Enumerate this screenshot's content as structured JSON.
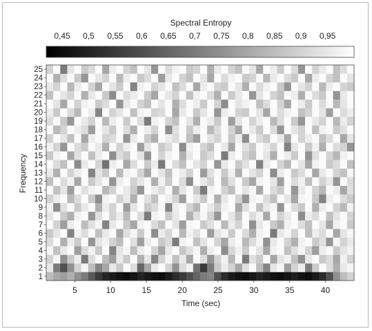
{
  "chart_data": {
    "type": "heatmap",
    "title": "",
    "colorbar": {
      "label": "Spectral Entropy",
      "ticks": [
        0.45,
        0.5,
        0.55,
        0.6,
        0.65,
        0.7,
        0.75,
        0.8,
        0.85,
        0.9,
        0.95
      ],
      "tick_labels": [
        "0,45",
        "0,5",
        "0,55",
        "0,6",
        "0,65",
        "0,7",
        "0,75",
        "0,8",
        "0,85",
        "0,9",
        "0,95"
      ],
      "range": [
        0.42,
        1.0
      ],
      "colormap": "gray (black = low, white = high)",
      "placement": "top"
    },
    "xlabel": "Time (sec)",
    "ylabel": "Frequency",
    "x_ticks": [
      5,
      10,
      15,
      20,
      25,
      30,
      35,
      40
    ],
    "y_ticks": [
      1,
      2,
      3,
      4,
      5,
      6,
      7,
      8,
      9,
      10,
      11,
      12,
      13,
      14,
      15,
      16,
      17,
      18,
      19,
      20,
      21,
      22,
      23,
      24,
      25
    ],
    "x_range": [
      1,
      44
    ],
    "y_range": [
      1,
      25
    ],
    "grid": false,
    "rows": {
      "1": [
        0.85,
        0.8,
        0.78,
        0.82,
        0.75,
        0.7,
        0.62,
        0.55,
        0.5,
        0.48,
        0.46,
        0.45,
        0.47,
        0.5,
        0.48,
        0.46,
        0.45,
        0.48,
        0.52,
        0.55,
        0.6,
        0.65,
        0.7,
        0.72,
        0.6,
        0.52,
        0.48,
        0.46,
        0.45,
        0.47,
        0.5,
        0.48,
        0.46,
        0.45,
        0.47,
        0.49,
        0.46,
        0.45,
        0.48,
        0.52,
        0.6,
        0.75,
        0.85,
        0.9
      ],
      "2": [
        0.95,
        0.7,
        0.6,
        0.75,
        0.9,
        0.98,
        0.85,
        0.72,
        0.8,
        0.95,
        0.88,
        0.99,
        0.92,
        0.65,
        0.8,
        0.95,
        0.99,
        0.9,
        0.75,
        0.92,
        0.97,
        0.68,
        0.55,
        0.7,
        0.88,
        0.96,
        0.9,
        0.8,
        0.93,
        0.99,
        0.85,
        0.72,
        0.94,
        0.98,
        0.78,
        0.9,
        0.96,
        0.7,
        0.88,
        0.99,
        0.92,
        0.82,
        0.95,
        0.98
      ],
      "3": [
        0.9,
        0.98,
        0.75,
        0.88,
        0.96,
        0.7,
        0.92,
        0.99,
        0.85,
        0.78,
        0.95,
        0.88,
        0.99,
        0.82,
        0.94,
        0.72,
        0.9,
        0.98,
        0.86,
        0.95,
        0.8,
        0.99,
        0.92,
        0.76,
        0.9,
        0.97,
        0.84,
        0.99,
        0.7,
        0.93,
        0.88,
        0.99,
        0.8,
        0.94,
        0.97,
        0.86,
        0.75,
        0.95,
        0.99,
        0.88,
        0.92,
        0.8,
        0.97,
        0.9
      ],
      "4": [
        0.98,
        0.86,
        0.95,
        0.99,
        0.78,
        0.92,
        0.97,
        0.88,
        0.99,
        0.72,
        0.94,
        0.98,
        0.85,
        0.96,
        0.99,
        0.9,
        0.8,
        0.95,
        0.99,
        0.87,
        0.93,
        0.98,
        0.82,
        0.96,
        0.99,
        0.74,
        0.91,
        0.97,
        0.88,
        0.99,
        0.94,
        0.8,
        0.97,
        0.99,
        0.86,
        0.93,
        0.98,
        0.9,
        0.78,
        0.96,
        0.99,
        0.88,
        0.94,
        0.97
      ],
      "5": [
        0.92,
        0.99,
        0.82,
        0.96,
        0.88,
        0.99,
        0.76,
        0.94,
        0.97,
        0.9,
        0.85,
        0.99,
        0.93,
        0.78,
        0.96,
        0.99,
        0.88,
        0.92,
        0.7,
        0.97,
        0.99,
        0.86,
        0.94,
        0.99,
        0.9,
        0.8,
        0.96,
        0.99,
        0.84,
        0.92,
        0.98,
        0.75,
        0.95,
        0.99,
        0.9,
        0.82,
        0.97,
        0.99,
        0.88,
        0.93,
        0.76,
        0.98,
        0.9,
        0.95
      ],
      "6": [
        0.88,
        0.94,
        0.99,
        0.72,
        0.97,
        0.92,
        0.99,
        0.86,
        0.95,
        0.99,
        0.8,
        0.93,
        0.98,
        0.88,
        0.99,
        0.74,
        0.96,
        0.91,
        0.99,
        0.84,
        0.97,
        0.93,
        0.99,
        0.78,
        0.94,
        0.98,
        0.88,
        0.99,
        0.92,
        0.82,
        0.97,
        0.99,
        0.7,
        0.95,
        0.98,
        0.9,
        0.99,
        0.85,
        0.96,
        0.92,
        0.99,
        0.8,
        0.94,
        0.98
      ],
      "7": [
        0.99,
        0.9,
        0.78,
        0.96,
        0.99,
        0.85,
        0.93,
        0.98,
        0.72,
        0.95,
        0.99,
        0.88,
        0.8,
        0.97,
        0.99,
        0.92,
        0.86,
        0.99,
        0.94,
        0.78,
        0.98,
        0.99,
        0.88,
        0.93,
        0.99,
        0.84,
        0.96,
        0.9,
        0.99,
        0.75,
        0.95,
        0.99,
        0.88,
        0.82,
        0.97,
        0.99,
        0.92,
        0.86,
        0.99,
        0.94,
        0.8,
        0.97,
        0.99,
        0.88
      ],
      "8": [
        0.94,
        0.99,
        0.88,
        0.82,
        0.97,
        0.99,
        0.76,
        0.93,
        0.99,
        0.9,
        0.96,
        0.84,
        0.99,
        0.92,
        0.7,
        0.97,
        0.99,
        0.88,
        0.95,
        0.99,
        0.82,
        0.93,
        0.98,
        0.9,
        0.76,
        0.99,
        0.94,
        0.86,
        0.99,
        0.92,
        0.97,
        0.8,
        0.99,
        0.9,
        0.95,
        0.99,
        0.74,
        0.96,
        0.92,
        0.99,
        0.86,
        0.94,
        0.99,
        0.9
      ],
      "9": [
        0.97,
        0.74,
        0.93,
        0.99,
        0.88,
        0.95,
        0.99,
        0.82,
        0.96,
        0.9,
        0.99,
        0.78,
        0.94,
        0.99,
        0.88,
        0.92,
        0.98,
        0.72,
        0.96,
        0.99,
        0.9,
        0.84,
        0.99,
        0.95,
        0.88,
        0.97,
        0.99,
        0.8,
        0.93,
        0.99,
        0.86,
        0.95,
        0.98,
        0.76,
        0.99,
        0.92,
        0.88,
        0.99,
        0.82,
        0.96,
        0.99,
        0.9,
        0.84,
        0.97
      ],
      "10": [
        0.9,
        0.96,
        0.99,
        0.84,
        0.92,
        0.99,
        0.88,
        0.74,
        0.97,
        0.99,
        0.9,
        0.95,
        0.82,
        0.99,
        0.93,
        0.86,
        0.99,
        0.96,
        0.9,
        0.78,
        0.99,
        0.94,
        0.88,
        0.99,
        0.82,
        0.95,
        0.99,
        0.9,
        0.76,
        0.97,
        0.99,
        0.92,
        0.86,
        0.99,
        0.94,
        0.8,
        0.98,
        0.99,
        0.88,
        0.72,
        0.96,
        0.99,
        0.92,
        0.88
      ],
      "11": [
        0.99,
        0.86,
        0.94,
        0.78,
        0.99,
        0.93,
        0.97,
        0.99,
        0.84,
        0.9,
        0.99,
        0.95,
        0.88,
        0.76,
        0.99,
        0.96,
        0.92,
        0.99,
        0.82,
        0.94,
        0.99,
        0.88,
        0.7,
        0.97,
        0.99,
        0.9,
        0.85,
        0.99,
        0.94,
        0.98,
        0.8,
        0.99,
        0.92,
        0.88,
        0.99,
        0.76,
        0.95,
        0.99,
        0.9,
        0.84,
        0.99,
        0.96,
        0.8,
        0.93
      ],
      "12": [
        0.86,
        0.99,
        0.92,
        0.97,
        0.8,
        0.99,
        0.88,
        0.94,
        0.99,
        0.76,
        0.96,
        0.99,
        0.9,
        0.94,
        0.99,
        0.82,
        0.97,
        0.88,
        0.99,
        0.92,
        0.74,
        0.99,
        0.95,
        0.9,
        0.99,
        0.84,
        0.93,
        0.99,
        0.88,
        0.8,
        0.97,
        0.99,
        0.94,
        0.78,
        0.99,
        0.92,
        0.97,
        0.86,
        0.99,
        0.9,
        0.95,
        0.76,
        0.99,
        0.92
      ],
      "13": [
        0.95,
        0.82,
        0.99,
        0.9,
        0.96,
        0.99,
        0.72,
        0.94,
        0.88,
        0.99,
        0.84,
        0.97,
        0.99,
        0.9,
        0.8,
        0.99,
        0.94,
        0.86,
        0.99,
        0.96,
        0.9,
        0.99,
        0.78,
        0.93,
        0.99,
        0.88,
        0.97,
        0.82,
        0.99,
        0.94,
        0.9,
        0.99,
        0.74,
        0.96,
        0.99,
        0.88,
        0.92,
        0.99,
        0.8,
        0.95,
        0.99,
        0.9,
        0.86,
        0.98
      ],
      "14": [
        0.99,
        0.92,
        0.86,
        0.99,
        0.74,
        0.95,
        0.99,
        0.9,
        0.68,
        0.96,
        0.99,
        0.8,
        0.92,
        0.99,
        0.88,
        0.96,
        0.7,
        0.99,
        0.92,
        0.86,
        0.99,
        0.94,
        0.9,
        0.99,
        0.76,
        0.95,
        0.99,
        0.88,
        0.93,
        0.99,
        0.72,
        0.96,
        0.99,
        0.9,
        0.84,
        0.99,
        0.94,
        0.8,
        0.97,
        0.99,
        0.88,
        0.92,
        0.99,
        0.86
      ],
      "15": [
        0.88,
        0.97,
        0.99,
        0.8,
        0.93,
        0.99,
        0.86,
        0.96,
        0.99,
        0.74,
        0.92,
        0.88,
        0.99,
        0.94,
        0.76,
        0.99,
        0.9,
        0.97,
        0.99,
        0.82,
        0.95,
        0.99,
        0.88,
        0.92,
        0.99,
        0.7,
        0.96,
        0.99,
        0.9,
        0.86,
        0.99,
        0.94,
        0.82,
        0.99,
        0.96,
        0.88,
        0.99,
        0.76,
        0.93,
        0.99,
        0.9,
        0.84,
        0.97,
        0.99
      ],
      "16": [
        0.97,
        0.9,
        0.76,
        0.99,
        0.92,
        0.88,
        0.99,
        0.95,
        0.82,
        0.99,
        0.9,
        0.96,
        0.99,
        0.78,
        0.94,
        0.99,
        0.88,
        0.92,
        0.99,
        0.74,
        0.97,
        0.99,
        0.9,
        0.86,
        0.99,
        0.95,
        0.8,
        0.99,
        0.93,
        0.88,
        0.99,
        0.96,
        0.9,
        0.99,
        0.72,
        0.94,
        0.99,
        0.88,
        0.97,
        0.82,
        0.99,
        0.92,
        0.9,
        0.76
      ],
      "17": [
        0.9,
        0.99,
        0.94,
        0.86,
        0.99,
        0.8,
        0.96,
        0.99,
        0.9,
        0.92,
        0.99,
        0.76,
        0.95,
        0.99,
        0.88,
        0.82,
        0.99,
        0.96,
        0.92,
        0.99,
        0.86,
        0.78,
        0.99,
        0.94,
        0.9,
        0.99,
        0.88,
        0.96,
        0.74,
        0.99,
        0.92,
        0.88,
        0.99,
        0.95,
        0.8,
        0.99,
        0.9,
        0.96,
        0.99,
        0.86,
        0.92,
        0.99,
        0.8,
        0.94
      ],
      "18": [
        0.99,
        0.84,
        0.9,
        0.99,
        0.96,
        0.92,
        0.78,
        0.99,
        0.94,
        0.88,
        0.99,
        0.92,
        0.82,
        0.99,
        0.96,
        0.9,
        0.99,
        0.74,
        0.93,
        0.99,
        0.88,
        0.96,
        0.99,
        0.84,
        0.92,
        0.99,
        0.9,
        0.8,
        0.99,
        0.95,
        0.88,
        0.99,
        0.92,
        0.76,
        0.99,
        0.94,
        0.9,
        0.99,
        0.86,
        0.97,
        0.99,
        0.88,
        0.93,
        0.99
      ],
      "19": [
        0.92,
        0.99,
        0.88,
        0.76,
        0.99,
        0.95,
        0.9,
        0.99,
        0.84,
        0.96,
        0.99,
        0.88,
        0.99,
        0.92,
        0.7,
        0.97,
        0.99,
        0.9,
        0.86,
        0.99,
        0.94,
        0.82,
        0.99,
        0.96,
        0.88,
        0.99,
        0.78,
        0.94,
        0.99,
        0.9,
        0.96,
        0.99,
        0.84,
        0.92,
        0.99,
        0.88,
        0.76,
        0.99,
        0.95,
        0.9,
        0.99,
        0.84,
        0.96,
        0.9
      ],
      "20": [
        0.96,
        0.88,
        0.99,
        0.92,
        0.84,
        0.99,
        0.96,
        0.72,
        0.99,
        0.9,
        0.94,
        0.99,
        0.86,
        0.97,
        0.99,
        0.9,
        0.92,
        0.99,
        0.8,
        0.95,
        0.99,
        0.88,
        0.94,
        0.99,
        0.76,
        0.96,
        0.99,
        0.9,
        0.88,
        0.99,
        0.94,
        0.8,
        0.99,
        0.92,
        0.97,
        0.99,
        0.86,
        0.9,
        0.99,
        0.94,
        0.78,
        0.99,
        0.92,
        0.96
      ],
      "21": [
        0.99,
        0.94,
        0.8,
        0.99,
        0.9,
        0.97,
        0.99,
        0.88,
        0.92,
        0.99,
        0.76,
        0.95,
        0.99,
        0.9,
        0.86,
        0.99,
        0.94,
        0.99,
        0.82,
        0.92,
        0.99,
        0.96,
        0.88,
        0.99,
        0.9,
        0.74,
        0.99,
        0.94,
        0.97,
        0.99,
        0.86,
        0.92,
        0.99,
        0.9,
        0.8,
        0.99,
        0.96,
        0.88,
        0.99,
        0.92,
        0.99,
        0.84,
        0.94,
        0.99
      ],
      "22": [
        0.86,
        0.99,
        0.94,
        0.9,
        0.99,
        0.82,
        0.95,
        0.99,
        0.88,
        0.74,
        0.99,
        0.92,
        0.96,
        0.99,
        0.88,
        0.8,
        0.99,
        0.94,
        0.9,
        0.99,
        0.86,
        0.97,
        0.99,
        0.92,
        0.82,
        0.99,
        0.88,
        0.95,
        0.99,
        0.76,
        0.94,
        0.99,
        0.9,
        0.86,
        0.99,
        0.96,
        0.82,
        0.99,
        0.92,
        0.88,
        0.99,
        0.76,
        0.95,
        0.99
      ],
      "23": [
        0.95,
        0.9,
        0.99,
        0.84,
        0.96,
        0.99,
        0.9,
        0.8,
        0.99,
        0.94,
        0.88,
        0.99,
        0.72,
        0.97,
        0.99,
        0.9,
        0.94,
        0.99,
        0.86,
        0.92,
        0.99,
        0.8,
        0.96,
        0.99,
        0.9,
        0.88,
        0.99,
        0.94,
        0.82,
        0.99,
        0.92,
        0.97,
        0.99,
        0.88,
        0.76,
        0.99,
        0.94,
        0.9,
        0.99,
        0.84,
        0.96,
        0.99,
        0.9,
        0.88
      ],
      "24": [
        0.99,
        0.82,
        0.92,
        0.99,
        0.88,
        0.76,
        0.99,
        0.94,
        0.9,
        0.99,
        0.84,
        0.96,
        0.99,
        0.88,
        0.92,
        0.99,
        0.78,
        0.95,
        0.99,
        0.9,
        0.86,
        0.99,
        0.94,
        0.8,
        0.99,
        0.92,
        0.97,
        0.99,
        0.88,
        0.9,
        0.99,
        0.84,
        0.95,
        0.99,
        0.92,
        0.88,
        0.99,
        0.8,
        0.96,
        0.99,
        0.9,
        0.86,
        0.99,
        0.94
      ],
      "25": [
        0.9,
        0.99,
        0.7,
        0.94,
        0.99,
        0.88,
        0.92,
        0.99,
        0.8,
        0.96,
        0.99,
        0.9,
        0.86,
        0.99,
        0.94,
        0.76,
        0.99,
        0.92,
        0.97,
        0.99,
        0.88,
        0.9,
        0.99,
        0.82,
        0.95,
        0.99,
        0.9,
        0.86,
        0.99,
        0.94,
        0.8,
        0.99,
        0.96,
        0.88,
        0.99,
        0.92,
        0.76,
        0.99,
        0.9,
        0.95,
        0.99,
        0.86,
        0.92,
        0.99
      ]
    }
  }
}
